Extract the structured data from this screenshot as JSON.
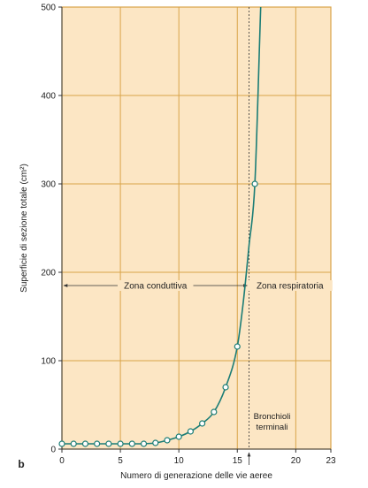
{
  "panel_label": "b",
  "colors": {
    "plot_bg": "#FCE6C4",
    "grid": "#D9A449",
    "curve": "#1B7D76",
    "marker_fill": "#FFFFFF",
    "axis": "#333333",
    "text": "#222222"
  },
  "chart_data": {
    "type": "line",
    "title": "",
    "xlabel": "Numero di generazione delle vie aeree",
    "ylabel": "Superficie di sezione totale (cm²)",
    "xlim": [
      0,
      23
    ],
    "ylim": [
      0,
      500
    ],
    "x_ticks": [
      0,
      5,
      10,
      15,
      20,
      23
    ],
    "y_ticks": [
      0,
      100,
      200,
      300,
      400,
      500
    ],
    "grid": true,
    "x": [
      0,
      1,
      2,
      3,
      4,
      5,
      6,
      7,
      8,
      9,
      10,
      11,
      12,
      13,
      14,
      15,
      16.5
    ],
    "y": [
      6,
      6,
      6,
      6,
      6,
      6,
      6,
      6,
      7,
      10,
      14,
      20,
      29,
      42,
      70,
      116,
      300
    ],
    "curve_x": [
      0,
      4,
      6,
      8,
      9,
      10,
      11,
      12,
      13,
      14,
      15,
      15.5,
      16,
      16.5,
      17
    ],
    "curve_y": [
      6,
      6,
      6,
      7,
      10,
      14,
      20,
      29,
      42,
      70,
      116,
      165,
      230,
      300,
      500
    ],
    "zones": [
      {
        "label": "Zona conduttiva",
        "from": 0,
        "to": 16,
        "y": 185
      },
      {
        "label": "Zona respiratoria",
        "from": 16,
        "to": 23,
        "y": 185
      }
    ],
    "divider_x": 16,
    "annotation": {
      "text": [
        "Bronchioli",
        "terminali"
      ],
      "x": 16
    }
  }
}
